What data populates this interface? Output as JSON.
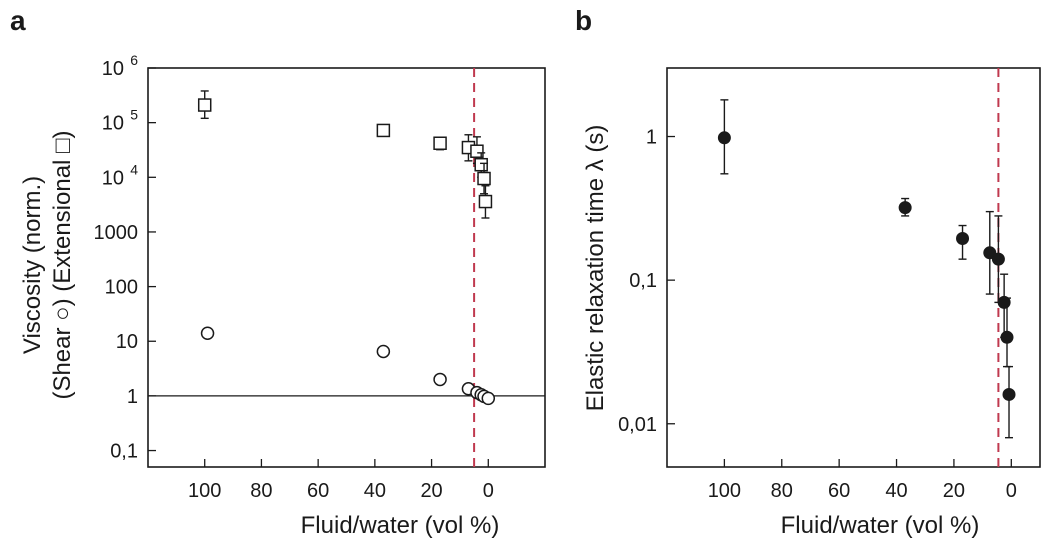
{
  "panels": [
    "a",
    "b"
  ],
  "chart_data": [
    {
      "panel": "a",
      "type": "scatter",
      "title": "",
      "xlabel": "Fluid/water (vol %)",
      "ylabel_line1": "Viscosity (norm.)",
      "ylabel_line2": "(Shear ○) (Extensional □)",
      "xlim": [
        120,
        -20
      ],
      "ylim": [
        0.05,
        1000000
      ],
      "yscale": "log",
      "x_ticks": [
        {
          "value": 100,
          "label": "100"
        },
        {
          "value": 80,
          "label": "80"
        },
        {
          "value": 60,
          "label": "60"
        },
        {
          "value": 40,
          "label": "40"
        },
        {
          "value": 20,
          "label": "20"
        },
        {
          "value": 0,
          "label": "0"
        }
      ],
      "y_ticks": [
        {
          "value": 0.1,
          "label": "0,1"
        },
        {
          "value": 1,
          "label": "1"
        },
        {
          "value": 10,
          "label": "10"
        },
        {
          "value": 100,
          "label": "100"
        },
        {
          "value": 1000,
          "label": "1000"
        },
        {
          "value": 10000,
          "label": "10",
          "exp": "4"
        },
        {
          "value": 100000,
          "label": "10",
          "exp": "5"
        },
        {
          "value": 1000000,
          "label": "10",
          "exp": "6"
        }
      ],
      "reference_line_y": 1,
      "dashed_line_x": 5,
      "series": [
        {
          "marker": "open-square",
          "points": [
            {
              "x": 100,
              "y": 210000,
              "ylo": 120000,
              "yhi": 380000
            },
            {
              "x": 37,
              "y": 72000,
              "ylo": 60000,
              "yhi": 85000
            },
            {
              "x": 17,
              "y": 42000,
              "ylo": 32000,
              "yhi": 54000
            },
            {
              "x": 7,
              "y": 35000,
              "ylo": 20000,
              "yhi": 60000
            },
            {
              "x": 4,
              "y": 30000,
              "ylo": 18000,
              "yhi": 55000
            },
            {
              "x": 2.5,
              "y": 17000,
              "ylo": 10000,
              "yhi": 28000
            },
            {
              "x": 1.5,
              "y": 9500,
              "ylo": 5000,
              "yhi": 18000
            },
            {
              "x": 1,
              "y": 3600,
              "ylo": 1800,
              "yhi": 7000
            }
          ]
        },
        {
          "marker": "open-circle",
          "points": [
            {
              "x": 99,
              "y": 14
            },
            {
              "x": 37,
              "y": 6.5
            },
            {
              "x": 17,
              "y": 2
            },
            {
              "x": 7,
              "y": 1.35
            },
            {
              "x": 4,
              "y": 1.15
            },
            {
              "x": 2.5,
              "y": 1.05
            },
            {
              "x": 1.5,
              "y": 0.98
            },
            {
              "x": 0,
              "y": 0.9
            }
          ]
        }
      ]
    },
    {
      "panel": "b",
      "type": "scatter",
      "title": "",
      "xlabel": "Fluid/water (vol %)",
      "ylabel": "Elastic relaxation time λ (s)",
      "xlim": [
        120,
        -10
      ],
      "ylim": [
        0.005,
        3
      ],
      "yscale": "log",
      "x_ticks": [
        {
          "value": 100,
          "label": "100"
        },
        {
          "value": 80,
          "label": "80"
        },
        {
          "value": 60,
          "label": "60"
        },
        {
          "value": 40,
          "label": "40"
        },
        {
          "value": 20,
          "label": "20"
        },
        {
          "value": 0,
          "label": "0"
        }
      ],
      "y_ticks": [
        {
          "value": 0.01,
          "label": "0,01"
        },
        {
          "value": 0.1,
          "label": "0,1"
        },
        {
          "value": 1,
          "label": "1"
        }
      ],
      "dashed_line_x": 4.5,
      "series": [
        {
          "marker": "filled-circle",
          "points": [
            {
              "x": 100,
              "y": 0.98,
              "ylo": 0.55,
              "yhi": 1.8
            },
            {
              "x": 37,
              "y": 0.32,
              "ylo": 0.28,
              "yhi": 0.37
            },
            {
              "x": 17,
              "y": 0.195,
              "ylo": 0.14,
              "yhi": 0.24
            },
            {
              "x": 7.5,
              "y": 0.155,
              "ylo": 0.08,
              "yhi": 0.3
            },
            {
              "x": 4.5,
              "y": 0.14,
              "ylo": 0.07,
              "yhi": 0.28
            },
            {
              "x": 2.5,
              "y": 0.07,
              "ylo": 0.04,
              "yhi": 0.11
            },
            {
              "x": 1.5,
              "y": 0.04,
              "ylo": 0.025,
              "yhi": 0.075
            },
            {
              "x": 0.8,
              "y": 0.016,
              "ylo": 0.008,
              "yhi": 0.025
            }
          ]
        }
      ]
    }
  ]
}
